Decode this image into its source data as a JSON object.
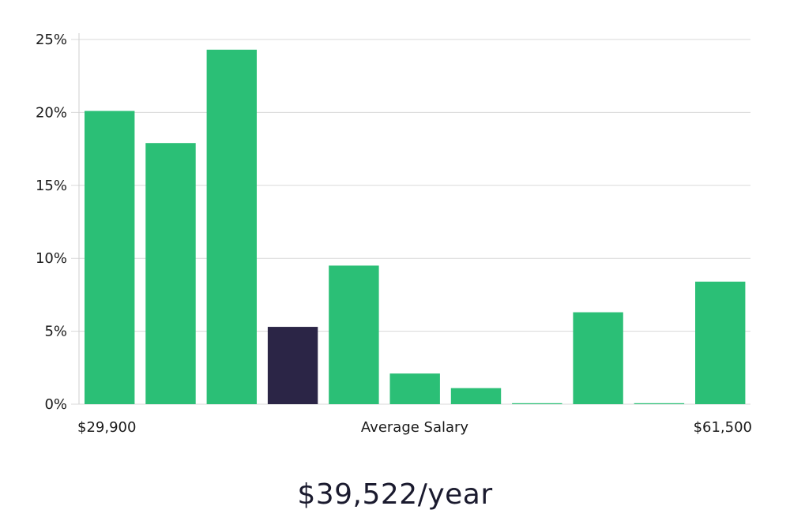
{
  "chart_data": {
    "type": "bar",
    "title": "",
    "xlabel": "Average Salary",
    "x_range_labels": [
      "$29,900",
      "$61,500"
    ],
    "ylabel": "",
    "ylim": [
      0,
      25
    ],
    "y_ticks": [
      "0%",
      "5%",
      "10%",
      "15%",
      "20%",
      "25%"
    ],
    "y_tick_values": [
      0,
      5,
      10,
      15,
      20,
      25
    ],
    "values": [
      20.1,
      17.9,
      24.3,
      5.3,
      9.5,
      2.1,
      1.1,
      0.05,
      6.3,
      0.05,
      8.4
    ],
    "highlight_index": 3,
    "grid": true,
    "colors": {
      "bar": "#2bbf76",
      "highlight": "#2b2546"
    }
  },
  "caption": "$39,522/year"
}
